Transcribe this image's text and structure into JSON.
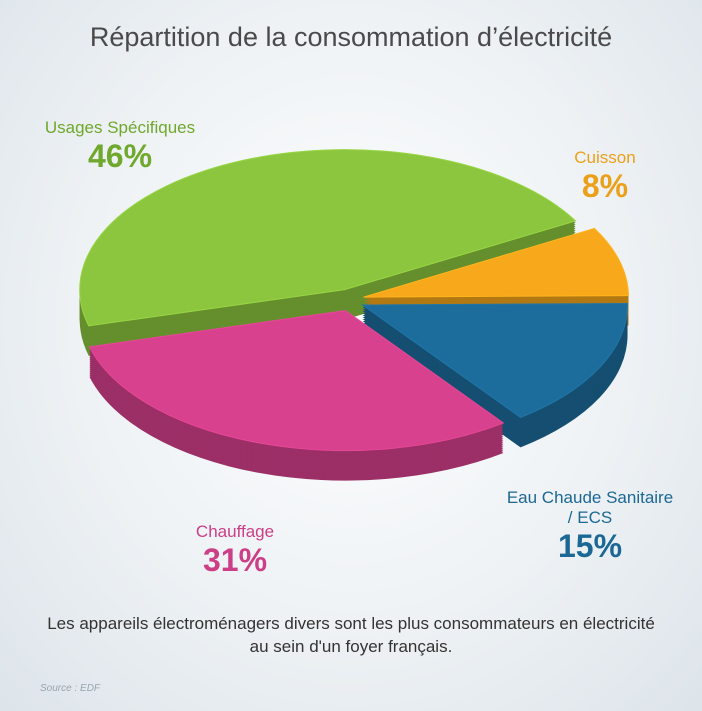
{
  "chart_data": {
    "type": "pie",
    "title": "Répartition de la consommation d’électricité",
    "categories": [
      "Usages Spécifiques",
      "Cuisson",
      "Eau Chaude Sanitaire / ECS",
      "Chauffage"
    ],
    "values": [
      46,
      8,
      15,
      31
    ],
    "value_labels": [
      "46%",
      "8%",
      "15%",
      "31%"
    ],
    "colors": [
      "#8cc63f",
      "#f7a81b",
      "#1d6d9c",
      "#d7418d"
    ],
    "caption": "Les appareils électroménagers divers sont les plus consommateurs en électricité au sein d'un foyer français.",
    "source": "Source : EDF"
  }
}
